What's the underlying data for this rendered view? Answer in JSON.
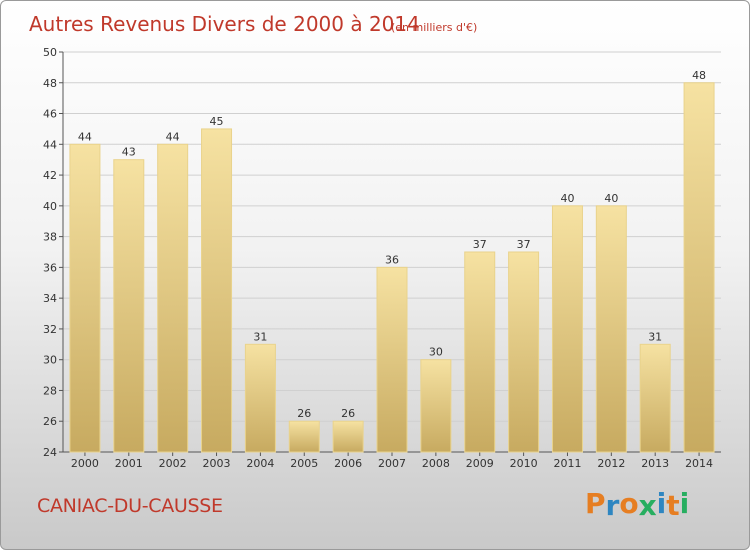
{
  "chart_data": {
    "type": "bar",
    "title": "Autres Revenus Divers de 2000 à 2014",
    "subtitle": "(en milliers d'€)",
    "categories": [
      "2000",
      "2001",
      "2002",
      "2003",
      "2004",
      "2005",
      "2006",
      "2007",
      "2008",
      "2009",
      "2010",
      "2011",
      "2012",
      "2013",
      "2014"
    ],
    "values": [
      44,
      43,
      44,
      45,
      31,
      26,
      26,
      36,
      30,
      37,
      37,
      40,
      40,
      31,
      48
    ],
    "ylim": [
      24,
      50
    ],
    "yticks": [
      24,
      26,
      28,
      30,
      32,
      34,
      36,
      38,
      40,
      42,
      44,
      46,
      48,
      50
    ],
    "grid": true,
    "bar_color_top": "#f6e2a2",
    "bar_color_bottom": "#c7aa60",
    "title_color": "#c0392b"
  },
  "footer": {
    "commune": "CANIAC-DU-CAUSSE",
    "brand_letters": [
      {
        "ch": "P",
        "color": "#e67e22"
      },
      {
        "ch": "r",
        "color": "#2e86c1"
      },
      {
        "ch": "o",
        "color": "#e67e22"
      },
      {
        "ch": "x",
        "color": "#27ae60"
      },
      {
        "ch": "i",
        "color": "#2e86c1"
      },
      {
        "ch": "t",
        "color": "#e67e22"
      },
      {
        "ch": "i",
        "color": "#27ae60"
      }
    ]
  }
}
